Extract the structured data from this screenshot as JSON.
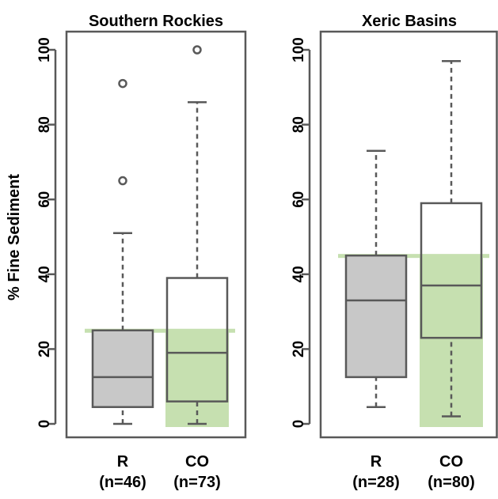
{
  "chart_data": {
    "type": "boxplot",
    "ylabel": "% Fine Sediment",
    "ylim": [
      0,
      100
    ],
    "yticks": [
      0,
      20,
      40,
      60,
      80,
      100
    ],
    "colors": {
      "r_box_fill": "#c8c8c8",
      "co_box_fill": "#ffffff",
      "box_stroke": "#595959",
      "reference_band": "#c6e0b0"
    },
    "panels": [
      {
        "title": "Southern Rockies",
        "reference_band": {
          "from": 0,
          "to": 25
        },
        "groups": [
          {
            "label": "R",
            "n_label": "(n=46)",
            "min": 0,
            "q1": 4.5,
            "median": 12.5,
            "q3": 25,
            "max": 51,
            "outliers": [
              65,
              91
            ]
          },
          {
            "label": "CO",
            "n_label": "(n=73)",
            "min": 0,
            "q1": 6,
            "median": 19,
            "q3": 39,
            "max": 86,
            "outliers": [
              100
            ]
          }
        ]
      },
      {
        "title": "Xeric Basins",
        "reference_band": {
          "from": 0,
          "to": 45
        },
        "groups": [
          {
            "label": "R",
            "n_label": "(n=28)",
            "min": 4.5,
            "q1": 12.5,
            "median": 33,
            "q3": 45,
            "max": 73,
            "outliers": []
          },
          {
            "label": "CO",
            "n_label": "(n=80)",
            "min": 2,
            "q1": 23,
            "median": 37,
            "q3": 59,
            "max": 97,
            "outliers": []
          }
        ]
      }
    ]
  }
}
